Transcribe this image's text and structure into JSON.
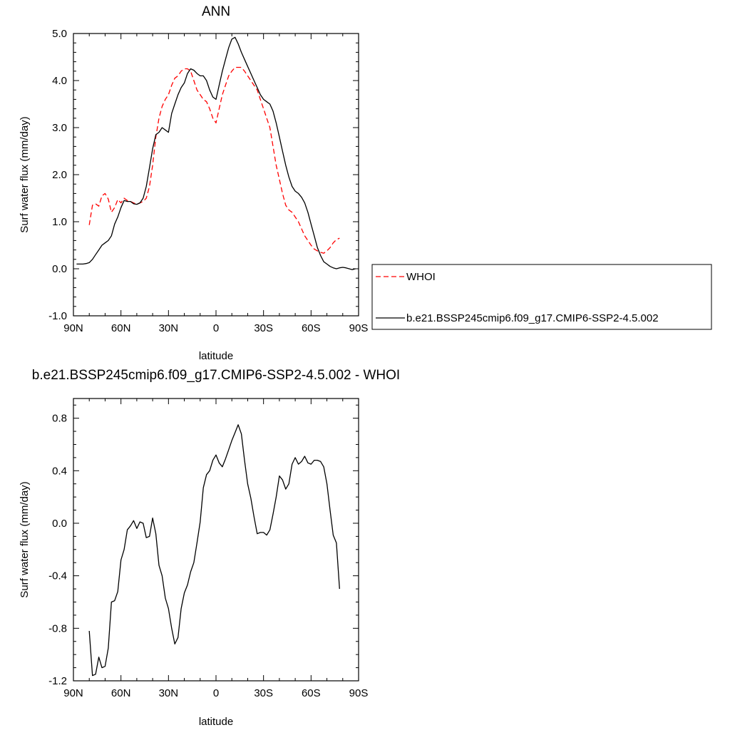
{
  "chart_data": [
    {
      "type": "line",
      "title": "ANN",
      "xlabel": "latitude",
      "ylabel": "Surf water flux (mm/day)",
      "xlim": [
        90,
        -90
      ],
      "ylim": [
        -1.0,
        5.0
      ],
      "x_ticks": [
        90,
        60,
        30,
        0,
        -30,
        -60,
        -90
      ],
      "x_tick_labels": [
        "90N",
        "60N",
        "30N",
        "0",
        "30S",
        "60S",
        "90S"
      ],
      "y_ticks": [
        -1.0,
        0.0,
        1.0,
        2.0,
        3.0,
        4.0,
        5.0
      ],
      "y_tick_labels": [
        "-1.0",
        "0.0",
        "1.0",
        "2.0",
        "3.0",
        "4.0",
        "5.0"
      ],
      "legend": "right",
      "series": [
        {
          "name": "WHOI",
          "color": "#ff0000",
          "dash": "dashed",
          "x": [
            80,
            78,
            76,
            74,
            72,
            70,
            68,
            66,
            64,
            62,
            60,
            58,
            56,
            54,
            52,
            50,
            48,
            46,
            44,
            42,
            40,
            38,
            36,
            34,
            32,
            30,
            28,
            26,
            24,
            22,
            20,
            18,
            16,
            14,
            12,
            10,
            8,
            6,
            4,
            2,
            0,
            -2,
            -4,
            -6,
            -8,
            -10,
            -12,
            -14,
            -16,
            -18,
            -20,
            -22,
            -24,
            -26,
            -28,
            -30,
            -32,
            -34,
            -36,
            -38,
            -40,
            -42,
            -44,
            -46,
            -48,
            -50,
            -52,
            -54,
            -56,
            -58,
            -60,
            -62,
            -64,
            -66,
            -68,
            -70,
            -72,
            -74,
            -76,
            -78
          ],
          "y": [
            0.93,
            1.35,
            1.38,
            1.33,
            1.55,
            1.6,
            1.48,
            1.2,
            1.3,
            1.47,
            1.4,
            1.5,
            1.45,
            1.43,
            1.4,
            1.37,
            1.4,
            1.43,
            1.5,
            1.75,
            2.2,
            2.8,
            3.2,
            3.45,
            3.6,
            3.7,
            3.9,
            4.05,
            4.1,
            4.2,
            4.25,
            4.25,
            4.2,
            4.0,
            3.8,
            3.7,
            3.6,
            3.55,
            3.4,
            3.2,
            3.1,
            3.4,
            3.7,
            3.9,
            4.1,
            4.2,
            4.28,
            4.28,
            4.28,
            4.2,
            4.1,
            4.0,
            3.9,
            3.8,
            3.6,
            3.4,
            3.2,
            3.0,
            2.6,
            2.2,
            1.9,
            1.6,
            1.35,
            1.25,
            1.2,
            1.1,
            1.0,
            0.85,
            0.7,
            0.6,
            0.5,
            0.42,
            0.38,
            0.35,
            0.33,
            0.38,
            0.45,
            0.55,
            0.62,
            0.65
          ]
        },
        {
          "name": "b.e21.BSSP245cmip6.f09_g17.CMIP6-SSP2-4.5.002",
          "color": "#000000",
          "dash": "solid",
          "x": [
            88,
            86,
            84,
            82,
            80,
            78,
            76,
            74,
            72,
            70,
            68,
            66,
            64,
            62,
            60,
            58,
            56,
            54,
            52,
            50,
            48,
            46,
            44,
            42,
            40,
            38,
            36,
            34,
            32,
            30,
            28,
            26,
            24,
            22,
            20,
            18,
            16,
            14,
            12,
            10,
            8,
            6,
            4,
            2,
            0,
            -2,
            -4,
            -6,
            -8,
            -10,
            -12,
            -14,
            -16,
            -18,
            -20,
            -22,
            -24,
            -26,
            -28,
            -30,
            -32,
            -34,
            -36,
            -38,
            -40,
            -42,
            -44,
            -46,
            -48,
            -50,
            -52,
            -54,
            -56,
            -58,
            -60,
            -62,
            -64,
            -66,
            -68,
            -70,
            -72,
            -74,
            -76,
            -78,
            -80,
            -82,
            -84,
            -86,
            -88
          ],
          "y": [
            0.1,
            0.1,
            0.1,
            0.11,
            0.13,
            0.2,
            0.3,
            0.4,
            0.5,
            0.55,
            0.6,
            0.7,
            0.95,
            1.1,
            1.3,
            1.45,
            1.43,
            1.43,
            1.38,
            1.37,
            1.4,
            1.5,
            1.75,
            2.15,
            2.55,
            2.85,
            2.9,
            3.0,
            2.95,
            2.9,
            3.3,
            3.5,
            3.7,
            3.85,
            3.95,
            4.15,
            4.25,
            4.22,
            4.15,
            4.1,
            4.1,
            4.0,
            3.8,
            3.65,
            3.6,
            3.9,
            4.2,
            4.45,
            4.7,
            4.88,
            4.92,
            4.78,
            4.6,
            4.45,
            4.3,
            4.15,
            4.0,
            3.85,
            3.7,
            3.6,
            3.55,
            3.5,
            3.35,
            3.1,
            2.8,
            2.5,
            2.2,
            1.95,
            1.75,
            1.65,
            1.6,
            1.52,
            1.4,
            1.2,
            0.95,
            0.7,
            0.45,
            0.28,
            0.15,
            0.1,
            0.05,
            0.02,
            0.0,
            0.02,
            0.03,
            0.02,
            0.0,
            -0.02,
            0.0
          ]
        }
      ]
    },
    {
      "type": "line",
      "title": "b.e21.BSSP245cmip6.f09_g17.CMIP6-SSP2-4.5.002 - WHOI",
      "xlabel": "latitude",
      "ylabel": "Surf water flux (mm/day)",
      "xlim": [
        90,
        -90
      ],
      "ylim": [
        -1.2,
        0.95
      ],
      "x_ticks": [
        90,
        60,
        30,
        0,
        -30,
        -60,
        -90
      ],
      "x_tick_labels": [
        "90N",
        "60N",
        "30N",
        "0",
        "30S",
        "60S",
        "90S"
      ],
      "y_ticks": [
        -1.2,
        -0.8,
        -0.4,
        0.0,
        0.4,
        0.8
      ],
      "y_tick_labels": [
        "-1.2",
        "-0.8",
        "-0.4",
        "0.0",
        "0.4",
        "0.8"
      ],
      "series": [
        {
          "color": "#000000",
          "dash": "solid",
          "x": [
            80,
            78,
            76,
            74,
            72,
            70,
            68,
            66,
            64,
            62,
            60,
            58,
            56,
            54,
            52,
            50,
            48,
            46,
            44,
            42,
            40,
            38,
            36,
            34,
            32,
            30,
            28,
            26,
            24,
            22,
            20,
            18,
            16,
            14,
            12,
            10,
            8,
            6,
            4,
            2,
            0,
            -2,
            -4,
            -6,
            -8,
            -10,
            -12,
            -14,
            -16,
            -18,
            -20,
            -22,
            -24,
            -26,
            -28,
            -30,
            -32,
            -34,
            -36,
            -38,
            -40,
            -42,
            -44,
            -46,
            -48,
            -50,
            -52,
            -54,
            -56,
            -58,
            -60,
            -62,
            -64,
            -66,
            -68,
            -70,
            -72,
            -74,
            -76,
            -78
          ],
          "y": [
            -0.82,
            -1.16,
            -1.15,
            -1.02,
            -1.1,
            -1.09,
            -0.95,
            -0.6,
            -0.59,
            -0.52,
            -0.28,
            -0.2,
            -0.05,
            -0.02,
            0.02,
            -0.04,
            0.01,
            0.0,
            -0.11,
            -0.1,
            0.04,
            -0.08,
            -0.32,
            -0.4,
            -0.57,
            -0.65,
            -0.8,
            -0.92,
            -0.87,
            -0.65,
            -0.53,
            -0.47,
            -0.37,
            -0.3,
            -0.15,
            0.01,
            0.27,
            0.37,
            0.4,
            0.48,
            0.52,
            0.46,
            0.43,
            0.49,
            0.56,
            0.63,
            0.69,
            0.75,
            0.68,
            0.48,
            0.3,
            0.19,
            0.05,
            -0.08,
            -0.07,
            -0.07,
            -0.09,
            -0.05,
            0.07,
            0.2,
            0.36,
            0.33,
            0.26,
            0.3,
            0.45,
            0.5,
            0.45,
            0.47,
            0.51,
            0.46,
            0.45,
            0.48,
            0.48,
            0.47,
            0.43,
            0.3,
            0.1,
            -0.09,
            -0.15,
            -0.5
          ]
        }
      ]
    }
  ]
}
